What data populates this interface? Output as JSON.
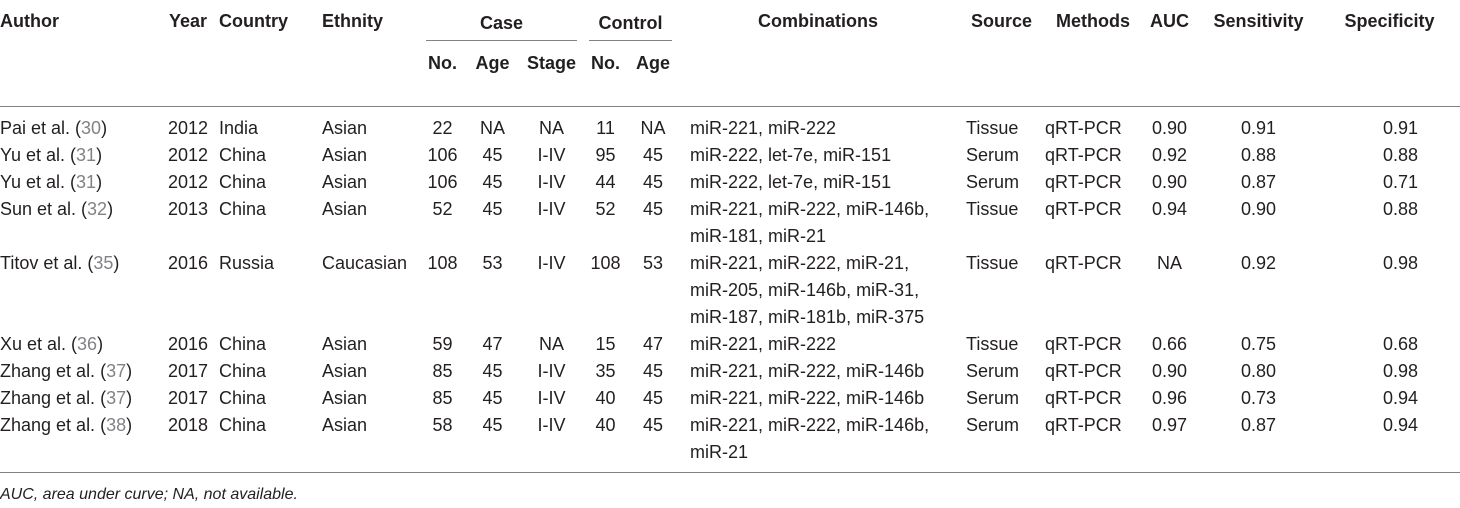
{
  "headers": {
    "author": "Author",
    "year": "Year",
    "country": "Country",
    "ethnity": "Ethnity",
    "case": "Case",
    "control": "Control",
    "combinations": "Combinations",
    "source": "Source",
    "methods": "Methods",
    "auc": "AUC",
    "sensitivity": "Sensitivity",
    "specificity": "Specificity",
    "case_no": "No.",
    "case_age": "Age",
    "case_stage": "Stage",
    "control_no": "No.",
    "control_age": "Age"
  },
  "rows": [
    {
      "author": "Pai et al. (",
      "ref": "30",
      "close": ")",
      "year": "2012",
      "country": "India",
      "ethnity": "Asian",
      "case_no": "22",
      "case_age": "NA",
      "case_stage": "NA",
      "control_no": "11",
      "control_age": "NA",
      "combinations": [
        "miR-221, miR-222"
      ],
      "source": "Tissue",
      "methods": "qRT-PCR",
      "auc": "0.90",
      "sensitivity": "0.91",
      "specificity": "0.91"
    },
    {
      "author": "Yu et al. (",
      "ref": "31",
      "close": ")",
      "year": "2012",
      "country": "China",
      "ethnity": "Asian",
      "case_no": "106",
      "case_age": "45",
      "case_stage": "I-IV",
      "control_no": "95",
      "control_age": "45",
      "combinations": [
        "miR-222, let-7e, miR-151"
      ],
      "source": "Serum",
      "methods": "qRT-PCR",
      "auc": "0.92",
      "sensitivity": "0.88",
      "specificity": "0.88"
    },
    {
      "author": "Yu et al. (",
      "ref": "31",
      "close": ")",
      "year": "2012",
      "country": "China",
      "ethnity": "Asian",
      "case_no": "106",
      "case_age": "45",
      "case_stage": "I-IV",
      "control_no": "44",
      "control_age": "45",
      "combinations": [
        "miR-222, let-7e, miR-151"
      ],
      "source": "Serum",
      "methods": "qRT-PCR",
      "auc": "0.90",
      "sensitivity": "0.87",
      "specificity": "0.71"
    },
    {
      "author": "Sun et al. (",
      "ref": "32",
      "close": ")",
      "year": "2013",
      "country": "China",
      "ethnity": "Asian",
      "case_no": "52",
      "case_age": "45",
      "case_stage": "I-IV",
      "control_no": "52",
      "control_age": "45",
      "combinations": [
        "miR-221, miR-222, miR-146b,",
        "miR-181, miR-21"
      ],
      "source": "Tissue",
      "methods": "qRT-PCR",
      "auc": "0.94",
      "sensitivity": "0.90",
      "specificity": "0.88"
    },
    {
      "author": "Titov et al. (",
      "ref": "35",
      "close": ")",
      "year": "2016",
      "country": "Russia",
      "ethnity": "Caucasian",
      "case_no": "108",
      "case_age": "53",
      "case_stage": "I-IV",
      "control_no": "108",
      "control_age": "53",
      "combinations": [
        "miR-221, miR-222, miR-21,",
        "miR-205, miR-146b, miR-31,",
        "miR-187, miR-181b, miR-375"
      ],
      "source": "Tissue",
      "methods": "qRT-PCR",
      "auc": "NA",
      "sensitivity": "0.92",
      "specificity": "0.98"
    },
    {
      "author": "Xu et al. (",
      "ref": "36",
      "close": ")",
      "year": "2016",
      "country": "China",
      "ethnity": "Asian",
      "case_no": "59",
      "case_age": "47",
      "case_stage": "NA",
      "control_no": "15",
      "control_age": "47",
      "combinations": [
        "miR-221, miR-222"
      ],
      "source": "Tissue",
      "methods": "qRT-PCR",
      "auc": "0.66",
      "sensitivity": "0.75",
      "specificity": "0.68"
    },
    {
      "author": "Zhang et al. (",
      "ref": "37",
      "close": ")",
      "year": "2017",
      "country": "China",
      "ethnity": "Asian",
      "case_no": "85",
      "case_age": "45",
      "case_stage": "I-IV",
      "control_no": "35",
      "control_age": "45",
      "combinations": [
        "miR-221, miR-222, miR-146b"
      ],
      "source": "Serum",
      "methods": "qRT-PCR",
      "auc": "0.90",
      "sensitivity": "0.80",
      "specificity": "0.98"
    },
    {
      "author": "Zhang et al. (",
      "ref": "37",
      "close": ")",
      "year": "2017",
      "country": "China",
      "ethnity": "Asian",
      "case_no": "85",
      "case_age": "45",
      "case_stage": "I-IV",
      "control_no": "40",
      "control_age": "45",
      "combinations": [
        "miR-221, miR-222, miR-146b"
      ],
      "source": "Serum",
      "methods": "qRT-PCR",
      "auc": "0.96",
      "sensitivity": "0.73",
      "specificity": "0.94"
    },
    {
      "author": "Zhang et al. (",
      "ref": "38",
      "close": ")",
      "year": "2018",
      "country": "China",
      "ethnity": "Asian",
      "case_no": "58",
      "case_age": "45",
      "case_stage": "I-IV",
      "control_no": "40",
      "control_age": "45",
      "combinations": [
        "miR-221, miR-222, miR-146b,",
        "miR-21"
      ],
      "source": "Serum",
      "methods": "qRT-PCR",
      "auc": "0.97",
      "sensitivity": "0.87",
      "specificity": "0.94"
    }
  ],
  "footnote": "AUC, area under curve; NA, not available.",
  "colors": {
    "text": "#231f20",
    "reference": "#808285",
    "rule": "#808285"
  }
}
